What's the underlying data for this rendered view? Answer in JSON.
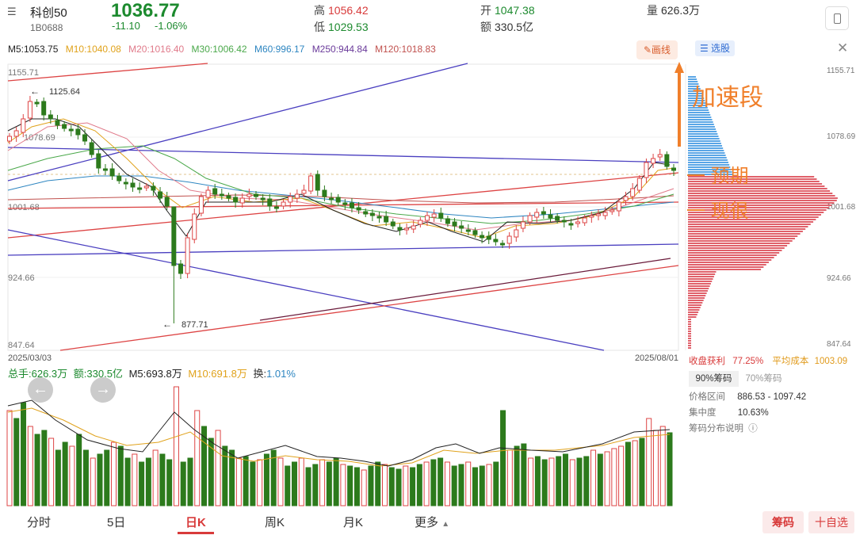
{
  "header": {
    "menu_icon": "menu-icon",
    "name": "科创50",
    "code": "1B0688",
    "price": "1036.77",
    "change": "-11.10",
    "change_pct": "-1.06%",
    "high_label": "高",
    "high": "1056.42",
    "low_label": "低",
    "low": "1029.53",
    "open_label": "开",
    "open": "1047.38",
    "amount_label": "额",
    "amount": "330.5亿",
    "volume_label": "量",
    "volume": "626.3万",
    "device_icon": "phone-icon"
  },
  "ma": {
    "m5": "M5:1053.75",
    "m10": "M10:1040.08",
    "m20": "M20:1016.40",
    "m30": "M30:1006.42",
    "m60": "M60:996.17",
    "m250": "M250:944.84",
    "m120": "M120:1018.83",
    "colors": {
      "m5": "#222222",
      "m10": "#e0a21b",
      "m20": "#e07a8a",
      "m30": "#4aa84a",
      "m60": "#2e86c1",
      "m250": "#6a3a9a",
      "m120": "#c0504d"
    }
  },
  "toolbar": {
    "draw_label": "画线",
    "pick_label": "选股",
    "close_icon": "close-icon"
  },
  "price_axis": {
    "left_ticks": [
      "1155.71",
      "1078.69",
      "1001.68",
      "924.66",
      "847.64"
    ],
    "right_ticks": [
      "1155.71",
      "1078.69",
      "1001.68",
      "924.66",
      "847.64"
    ]
  },
  "annotations": {
    "high_mark": "1125.64",
    "low_mark": "877.71",
    "start_date": "2025/03/03",
    "end_date": "2025/08/01",
    "hand_1": "加速段",
    "hand_2": "一 预期",
    "hand_3": "一 现很"
  },
  "volume_panel": {
    "total": "总手:626.3万",
    "amount": "额:330.5亿",
    "m5": "M5:693.8万",
    "m10": "M10:691.8万",
    "turnover_label": "换:",
    "turnover": "1.01%"
  },
  "chip_panel": {
    "profit_label": "收盘获利",
    "profit": "77.25%",
    "avg_cost_label": "平均成本",
    "avg_cost": "1003.09",
    "tab_90": "90%筹码",
    "tab_70": "70%筹码",
    "range_label": "价格区间",
    "range": "886.53 - 1097.42",
    "concentration_label": "集中度",
    "concentration": "10.63%",
    "help_label": "筹码分布说明",
    "help_icon": "help-circle-icon"
  },
  "bottom_nav": {
    "items": [
      "分时",
      "5日",
      "日K",
      "周K",
      "月K",
      "更多"
    ],
    "active": "日K",
    "chip_button": "筹码",
    "fav_button": "十自选"
  }
}
